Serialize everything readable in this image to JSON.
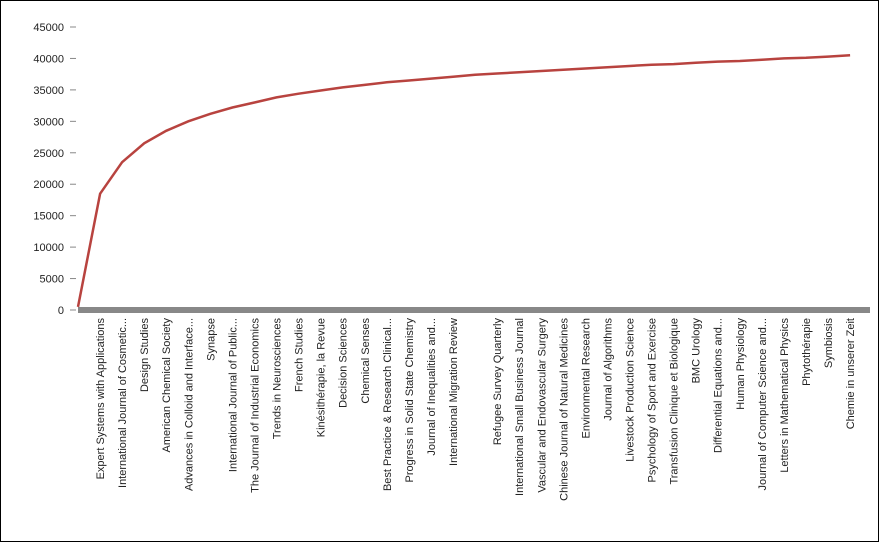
{
  "chart_data": {
    "type": "line",
    "categories": [
      null,
      "Expert Systems with Applications",
      "International Journal of Cosmetic...",
      "Design Studies",
      "American Chemical Society",
      "Advances in Colloid and Interface...",
      "Synapse",
      "International Journal of Public...",
      "The Journal of Industrial Economics",
      "Trends in Neurosciences",
      "French Studies",
      "Kinésithérapie, la Revue",
      "Decision Sciences",
      "Chemical Senses",
      "Best Practice & Research Clinical...",
      "Progress in Solid State Chemistry",
      "Journal of Inequalities and...",
      "International Migration Review",
      null,
      "Refugee Survey Quarterly",
      "International Small Business Journal",
      "Vascular and Endovascular Surgery",
      "Chinese Journal of Natural Medicines",
      "Environmental Research",
      "Journal of Algorithms",
      "Livestock Production Science",
      "Psychology of Sport and Exercise",
      "Transfusion Clinique et Biologique",
      "BMC Urology",
      "Differential Equations and...",
      "Human Physiology",
      "Journal of Computer Science and...",
      "Letters in Mathematical Physics",
      "Phytothérapie",
      "Symbiosis",
      "Chemie in unserer Zeit"
    ],
    "values": [
      500,
      18500,
      23500,
      26500,
      28500,
      30000,
      31200,
      32200,
      33000,
      33800,
      34400,
      34900,
      35400,
      35800,
      36200,
      36500,
      36800,
      37100,
      37400,
      37600,
      37800,
      38000,
      38200,
      38400,
      38600,
      38800,
      39000,
      39100,
      39300,
      39500,
      39600,
      39800,
      40000,
      40100,
      40300,
      40500
    ],
    "color": "#b8433f",
    "ylim": [
      0,
      45000
    ],
    "yticks": [
      0,
      5000,
      10000,
      15000,
      20000,
      25000,
      30000,
      35000,
      40000,
      45000
    ]
  }
}
